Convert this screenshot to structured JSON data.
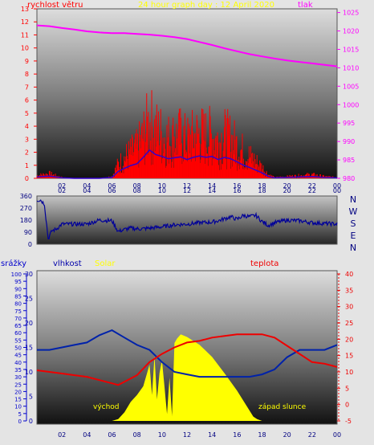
{
  "colors": {
    "wind": "#ff0000",
    "pressure": "#ff00ff",
    "direction": "#000099",
    "humidity": "#0022aa",
    "temperature": "#ee0000",
    "solar": "#ffff00",
    "rain": "#0000cc",
    "title": "#ffff00",
    "frame": "#e4e4e4"
  },
  "chart_data": [
    {
      "type": "line",
      "title": "24 hour graph day : 12 April 2020",
      "ylabel": "rychlost větru",
      "y2label": "tlak",
      "xlim": [
        0,
        24
      ],
      "ylim": [
        0,
        13
      ],
      "y2lim": [
        980,
        1026
      ],
      "x_ticks": [
        "02",
        "04",
        "06",
        "08",
        "10",
        "12",
        "14",
        "16",
        "18",
        "20",
        "22",
        "00"
      ],
      "y_ticks": [
        "0",
        "1",
        "2",
        "3",
        "4",
        "5",
        "6",
        "7",
        "8",
        "9",
        "10",
        "11",
        "12",
        "13"
      ],
      "y2_ticks": [
        "980",
        "985",
        "990",
        "995",
        "1000",
        "1005",
        "1010",
        "1015",
        "1020",
        "1025"
      ],
      "grid": false,
      "series": [
        {
          "name": "rychlost větru",
          "x": [
            0,
            1,
            2,
            3,
            4,
            5,
            6,
            6.5,
            7,
            7.5,
            8,
            8.5,
            9,
            9.5,
            10,
            10.5,
            11,
            11.5,
            12,
            12.5,
            13,
            13.5,
            14,
            14.5,
            15,
            15.5,
            16,
            16.5,
            17,
            17.5,
            18,
            18.5,
            19,
            20,
            21,
            22,
            23,
            24
          ],
          "y": [
            0.3,
            0.5,
            0.1,
            0,
            0,
            0,
            0.2,
            1.5,
            2.2,
            2.8,
            3.2,
            4.6,
            6.2,
            5.2,
            4.8,
            4.3,
            4.5,
            4.7,
            4.1,
            4.6,
            4.9,
            4.6,
            4.8,
            4.1,
            4.6,
            4.3,
            3.6,
            2.9,
            2.4,
            1.8,
            1.2,
            0.4,
            0.1,
            0.2,
            0.3,
            0.4,
            0.2,
            0.1
          ]
        },
        {
          "name": "tlak",
          "x": [
            0,
            1,
            2,
            3,
            4,
            5,
            6,
            7,
            8,
            9,
            10,
            11,
            12,
            13,
            14,
            15,
            16,
            17,
            18,
            19,
            20,
            21,
            22,
            23,
            24
          ],
          "y": [
            1021.5,
            1021.3,
            1020.8,
            1020.4,
            1019.9,
            1019.6,
            1019.4,
            1019.4,
            1019.2,
            1019.0,
            1018.7,
            1018.3,
            1017.8,
            1017.0,
            1016.2,
            1015.3,
            1014.5,
            1013.7,
            1013.1,
            1012.5,
            1012.0,
            1011.6,
            1011.2,
            1010.8,
            1010.4
          ]
        }
      ]
    },
    {
      "type": "line",
      "ylim": [
        0,
        360
      ],
      "xlim": [
        0,
        24
      ],
      "y_ticks": [
        "0",
        "90",
        "180",
        "270",
        "360"
      ],
      "x_ticks": [
        "02",
        "04",
        "06",
        "08",
        "10",
        "12",
        "14",
        "16",
        "18",
        "20",
        "22",
        "00"
      ],
      "compass": [
        "N",
        "W",
        "S",
        "E",
        "N"
      ],
      "series": [
        {
          "name": "direction",
          "x": [
            0,
            0.3,
            0.6,
            0.9,
            1.2,
            1.5,
            2,
            3,
            4,
            5,
            6,
            6.5,
            7,
            7.5,
            8,
            8.5,
            9,
            10,
            11,
            12,
            13,
            14,
            14.5,
            15,
            15.5,
            16,
            16.5,
            17,
            17.5,
            18,
            18.5,
            19,
            20,
            21,
            22,
            23,
            24
          ],
          "y": [
            330,
            330,
            300,
            40,
            100,
            110,
            150,
            150,
            150,
            180,
            175,
            95,
            110,
            120,
            115,
            115,
            120,
            130,
            145,
            150,
            160,
            165,
            175,
            190,
            205,
            185,
            215,
            205,
            215,
            170,
            140,
            160,
            180,
            175,
            160,
            155,
            150
          ]
        }
      ]
    },
    {
      "type": "line",
      "xlim": [
        0,
        24
      ],
      "ylim_rain": [
        0,
        100
      ],
      "ylim_humidity": [
        0,
        30
      ],
      "ylim_temp": [
        -5,
        40
      ],
      "x_ticks": [
        "02",
        "04",
        "06",
        "08",
        "10",
        "12",
        "14",
        "16",
        "18",
        "20",
        "22",
        "00"
      ],
      "rain_ticks": [
        "0",
        "5",
        "10",
        "15",
        "20",
        "25",
        "30",
        "35",
        "40",
        "45",
        "50",
        "55",
        "60",
        "65",
        "70",
        "75",
        "80",
        "85",
        "90",
        "95",
        "100"
      ],
      "humidity_ticks": [
        "0",
        "5",
        "10",
        "15",
        "20",
        "25",
        "30"
      ],
      "temp_ticks": [
        "-5",
        "0",
        "5",
        "10",
        "15",
        "20",
        "25",
        "30",
        "35",
        "40"
      ],
      "labels": {
        "rain": "srážky",
        "humidity": "vlhkost",
        "solar": "Solar",
        "temperature": "teplota",
        "sunrise": "východ",
        "sunset": "západ slunce"
      },
      "series": [
        {
          "name": "vlhkost",
          "x": [
            0,
            1,
            2,
            3,
            4,
            5,
            6,
            7,
            8,
            9,
            10,
            11,
            12,
            13,
            14,
            15,
            16,
            17,
            18,
            19,
            20,
            21,
            22,
            23,
            24
          ],
          "y": [
            14.5,
            14.5,
            15,
            15.5,
            16,
            17.5,
            18.5,
            17,
            15.5,
            14.5,
            12,
            10,
            9.5,
            9,
            9,
            9,
            9,
            9,
            9.5,
            10.5,
            13,
            14.5,
            14.5,
            14.5,
            15.5
          ]
        },
        {
          "name": "teplota",
          "x": [
            0,
            1,
            2,
            3,
            4,
            5,
            6,
            6.5,
            7,
            8,
            9,
            10,
            11,
            12,
            13,
            14,
            15,
            16,
            17,
            18,
            19,
            20,
            21,
            22,
            23,
            24
          ],
          "y": [
            10.5,
            10,
            9.5,
            9,
            8.5,
            7.5,
            6.5,
            6,
            7,
            9,
            13,
            15.5,
            17.5,
            19,
            19.5,
            20.5,
            21,
            21.5,
            21.5,
            21.5,
            20.5,
            18,
            15.5,
            13,
            12.5,
            11.5
          ]
        },
        {
          "name": "Solar",
          "x": [
            0,
            6,
            6.5,
            7,
            7.5,
            8,
            8.5,
            9,
            9.2,
            9.4,
            9.6,
            9.8,
            10,
            10.2,
            10.4,
            10.6,
            10.8,
            11,
            11.2,
            11.5,
            12,
            13,
            14,
            15,
            16,
            17,
            17.3,
            17.6,
            18,
            24
          ],
          "y": [
            0,
            0,
            0.02,
            0.1,
            0.22,
            0.3,
            0.4,
            0.65,
            0.3,
            0.75,
            0.25,
            0.55,
            0.7,
            0.4,
            0.08,
            0.5,
            0.06,
            0.9,
            0.95,
            1.0,
            0.97,
            0.88,
            0.74,
            0.55,
            0.35,
            0.12,
            0.05,
            0.02,
            0,
            0
          ]
        }
      ]
    }
  ]
}
